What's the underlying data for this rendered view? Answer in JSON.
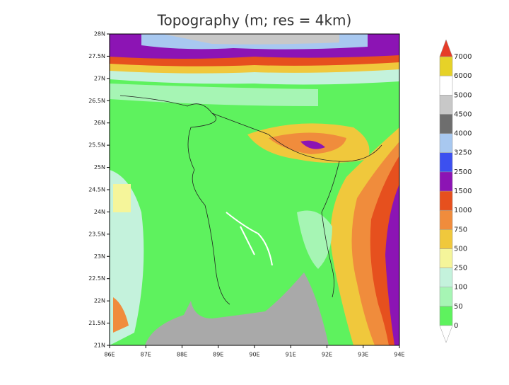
{
  "title": "Topography (m; res = 4km)",
  "lat_labels": [
    "28N",
    "27.5N",
    "27N",
    "26.5N",
    "26N",
    "25.5N",
    "25N",
    "24.5N",
    "24N",
    "23.5N",
    "23N",
    "22.5N",
    "22N",
    "21.5N",
    "21N"
  ],
  "lon_labels": [
    "86E",
    "87E",
    "88E",
    "89E",
    "90E",
    "91E",
    "92E",
    "93E",
    "94E"
  ],
  "colorbar": {
    "levels": [
      0,
      50,
      100,
      250,
      500,
      750,
      1000,
      1500,
      2500,
      3250,
      4000,
      4500,
      5000,
      6000,
      7000
    ],
    "colors": [
      "#5ef25e",
      "#a6f5b4",
      "#c4f2dc",
      "#f5f59a",
      "#f0c83c",
      "#f08c3c",
      "#e6501e",
      "#8c14b4",
      "#3c50f0",
      "#a8c8f0",
      "#6e6e6e",
      "#c8c8c8",
      "#ffffff",
      "#e6d228"
    ],
    "over_color": "#e63c28",
    "under_color": "#ffffff"
  }
}
